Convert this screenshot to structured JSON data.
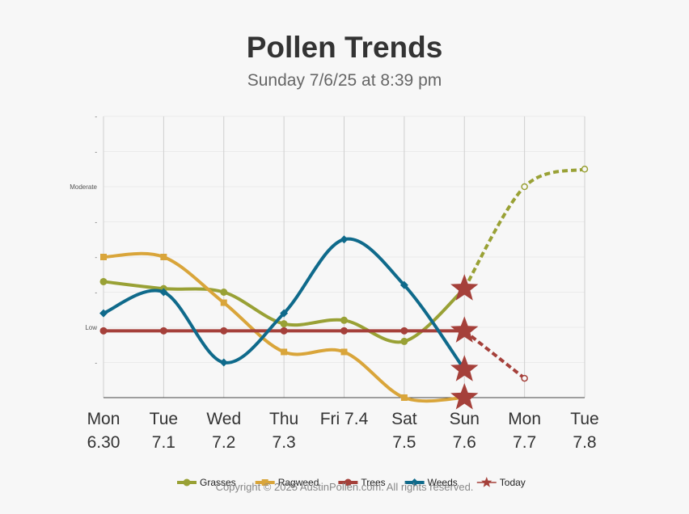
{
  "chart_data": {
    "type": "line",
    "title": "Pollen Trends",
    "subtitle": "Sunday 7/6/25 at 8:39 pm",
    "categories": [
      [
        "Mon",
        "6.30"
      ],
      [
        "Tue",
        "7.1"
      ],
      [
        "Wed",
        "7.2"
      ],
      [
        "Thu",
        "7.3"
      ],
      [
        "Fri 7.4",
        ""
      ],
      [
        "Sat",
        "7.5"
      ],
      [
        "Sun",
        "7.6"
      ],
      [
        "Mon",
        "7.7"
      ],
      [
        "Tue",
        "7.8"
      ]
    ],
    "ylim": [
      0,
      8
    ],
    "y_ticks": [
      {
        "value": 1,
        "label": "-"
      },
      {
        "value": 2,
        "label": "Low"
      },
      {
        "value": 3,
        "label": "-"
      },
      {
        "value": 4,
        "label": "-"
      },
      {
        "value": 5,
        "label": "-"
      },
      {
        "value": 6,
        "label": "Moderate"
      },
      {
        "value": 7,
        "label": "-"
      },
      {
        "value": 8,
        "label": "-"
      }
    ],
    "series": [
      {
        "name": "Grasses",
        "color": "#99a135",
        "marker": "circle",
        "values": [
          3.3,
          3.1,
          3.0,
          2.1,
          2.2,
          1.6,
          3.1,
          6.0,
          6.5
        ],
        "forecast_from": 6
      },
      {
        "name": "Ragweed",
        "color": "#d9a53a",
        "marker": "square",
        "values": [
          4.0,
          4.0,
          2.7,
          1.3,
          1.3,
          0.0,
          0.0,
          null,
          null
        ]
      },
      {
        "name": "Trees",
        "color": "#a5403a",
        "marker": "circle",
        "values": [
          1.9,
          1.9,
          1.9,
          1.9,
          1.9,
          1.9,
          1.9,
          0.55,
          null
        ],
        "forecast_from": 6
      },
      {
        "name": "Weeds",
        "color": "#0f6a8b",
        "marker": "diamond",
        "values": [
          2.4,
          3.0,
          1.0,
          2.4,
          4.5,
          3.2,
          0.8,
          null,
          null
        ]
      }
    ],
    "today": {
      "name": "Today",
      "color": "#a5403a",
      "index": 6
    },
    "grid": true,
    "legend_position": "bottom"
  },
  "copyright": "Copyright © 2025 AustinPollen.com.  All rights reserved."
}
